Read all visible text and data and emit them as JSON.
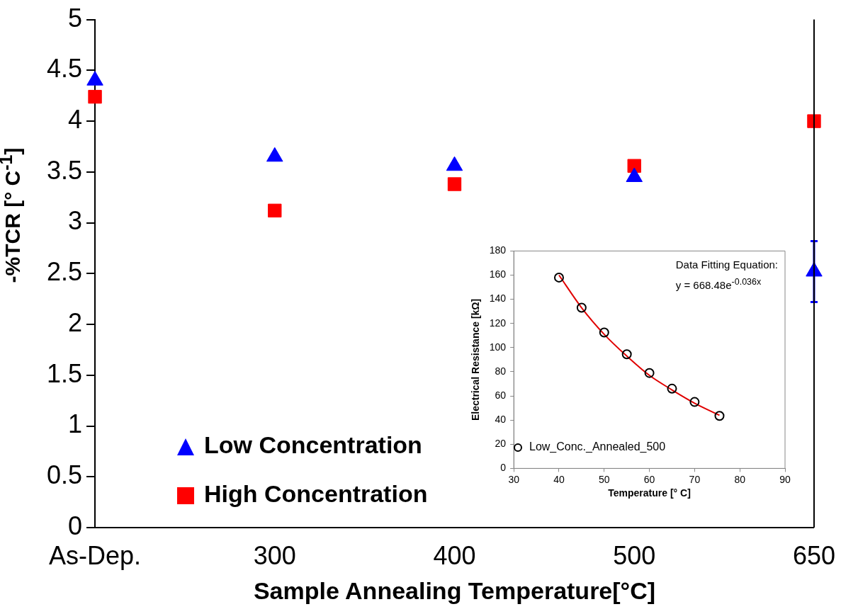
{
  "chart_data": [
    {
      "type": "scatter",
      "xlabel": "Sample Annealing Temperature[°C]",
      "ylabel": "-%TCR [° C$^{-1}$]",
      "categories": [
        "As-Dep.",
        "300",
        "400",
        "500",
        "650"
      ],
      "series": [
        {
          "name": "Low Concentration",
          "color": "#0000ff",
          "marker": "triangle",
          "values": [
            4.4,
            3.65,
            3.56,
            3.45,
            2.52
          ],
          "errors": [
            null,
            null,
            null,
            null,
            0.3
          ]
        },
        {
          "name": "High Concentration",
          "color": "#ff0000",
          "marker": "square",
          "values": [
            4.24,
            3.12,
            3.38,
            3.56,
            4.0
          ]
        }
      ],
      "ylim": [
        0,
        5
      ],
      "yticks": [
        0,
        0.5,
        1,
        1.5,
        2,
        2.5,
        3,
        3.5,
        4,
        4.5,
        5
      ],
      "grid": false,
      "legend": "bottom left"
    },
    {
      "type": "scatter",
      "xlabel": "Temperature [° C]",
      "ylabel": "Electrical Resistance [kΩ]",
      "annotations": [
        "Data Fitting Equation:",
        "y = 668.48e$^{-0.036x}$"
      ],
      "series": [
        {
          "name": "Low_Conc._Annealed_500",
          "color": "#000000",
          "marker": "circle",
          "x": [
            40,
            45,
            50,
            55,
            60,
            65,
            70,
            75.5
          ],
          "values": [
            158,
            133,
            112.5,
            94.5,
            79,
            66,
            55,
            43.5
          ]
        },
        {
          "type": "line",
          "color": "#e00000",
          "marker": "none",
          "x": [
            40,
            45,
            50,
            55,
            60,
            65,
            70,
            75.5
          ],
          "values": [
            160,
            133,
            111,
            93,
            77,
            65,
            54,
            44
          ]
        }
      ],
      "xlim": [
        30,
        90
      ],
      "xticks": [
        30,
        40,
        50,
        60,
        70,
        80,
        90
      ],
      "ylim": [
        0,
        180
      ],
      "yticks": [
        0,
        20,
        40,
        60,
        80,
        100,
        120,
        140,
        160,
        180
      ],
      "grid": false,
      "legend": "bottom left"
    }
  ]
}
